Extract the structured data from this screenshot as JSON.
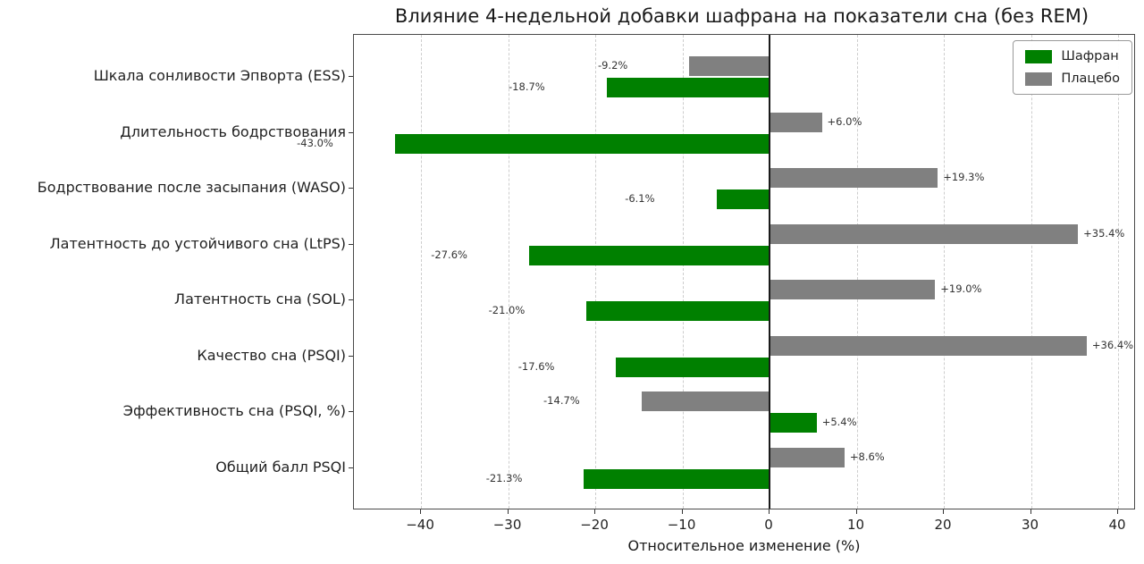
{
  "title": "Влияние 4-недельной добавки шафрана на показатели сна (без REM)",
  "chart_data": {
    "type": "bar",
    "orientation": "horizontal",
    "title": "Влияние 4-недельной добавки шафрана на показатели сна (без REM)",
    "xlabel": "Относительное изменение (%)",
    "categories": [
      "Шкала сонливости Эпворта (ESS)",
      "Длительность бодрствования",
      "Бодрствование после засыпания (WASO)",
      "Латентность до устойчивого сна (LtPS)",
      "Латентность сна (SOL)",
      "Качество сна (PSQI)",
      "Эффективность сна (PSQI, %)",
      "Общий балл PSQI"
    ],
    "series": [
      {
        "name": "Шафран",
        "color": "#008000",
        "values": [
          -18.7,
          -43.0,
          -6.1,
          -27.6,
          -21.0,
          -17.6,
          5.4,
          -21.3
        ],
        "labels": [
          "-18.7%",
          "-43.0%",
          "-6.1%",
          "-27.6%",
          "-21.0%",
          "-17.6%",
          "+5.4%",
          "-21.3%"
        ]
      },
      {
        "name": "Плацебо",
        "color": "#808080",
        "values": [
          -9.2,
          6.0,
          19.3,
          35.4,
          19.0,
          36.4,
          -14.7,
          8.6
        ],
        "labels": [
          "-9.2%",
          "+6.0%",
          "+19.3%",
          "+35.4%",
          "+19.0%",
          "+36.4%",
          "-14.7%",
          "+8.6%"
        ]
      }
    ],
    "xlim": [
      -47.7,
      42.05
    ],
    "xticks": [
      -40,
      -30,
      -20,
      -10,
      0,
      10,
      20,
      30,
      40
    ],
    "xtick_labels": [
      "−40",
      "−30",
      "−20",
      "−10",
      "0",
      "10",
      "20",
      "30",
      "40"
    ],
    "grid": "vertical-dashed",
    "zero_line": true,
    "legend_position": "upper right"
  }
}
